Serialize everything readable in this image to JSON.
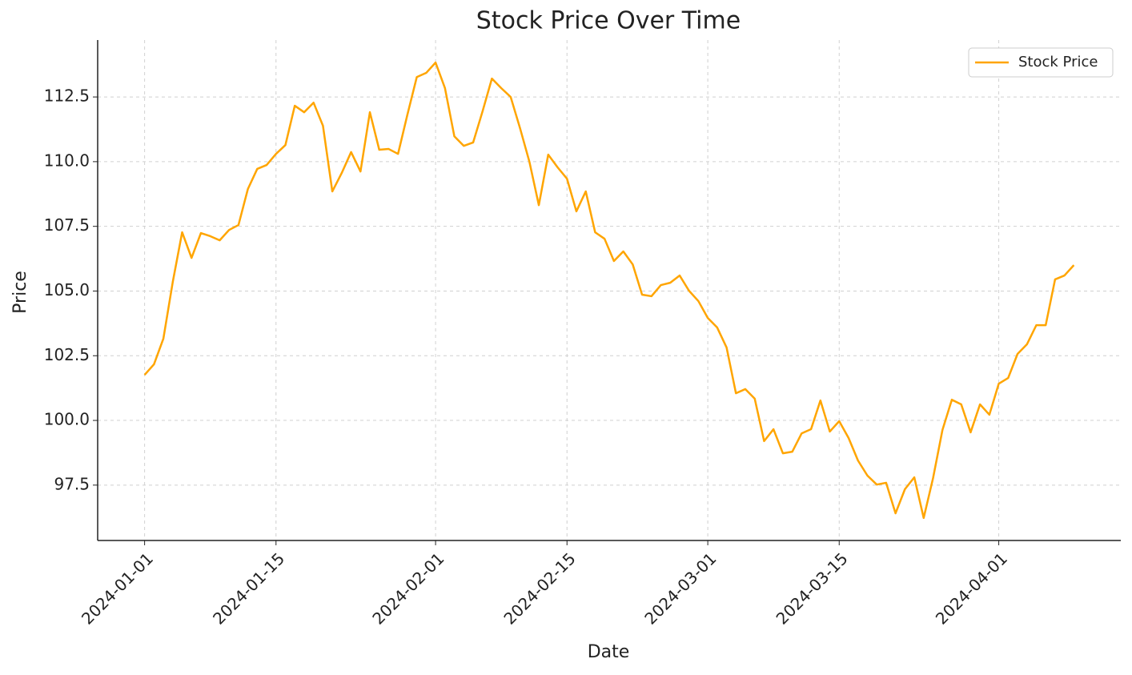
{
  "chart_data": {
    "type": "line",
    "title": "Stock Price Over Time",
    "x_label": "Date",
    "y_label": "Price",
    "x": [
      "2024-01-01",
      "2024-01-02",
      "2024-01-03",
      "2024-01-04",
      "2024-01-05",
      "2024-01-06",
      "2024-01-07",
      "2024-01-08",
      "2024-01-09",
      "2024-01-10",
      "2024-01-11",
      "2024-01-12",
      "2024-01-13",
      "2024-01-14",
      "2024-01-15",
      "2024-01-16",
      "2024-01-17",
      "2024-01-18",
      "2024-01-19",
      "2024-01-20",
      "2024-01-21",
      "2024-01-22",
      "2024-01-23",
      "2024-01-24",
      "2024-01-25",
      "2024-01-26",
      "2024-01-27",
      "2024-01-28",
      "2024-01-29",
      "2024-01-30",
      "2024-01-31",
      "2024-02-01",
      "2024-02-02",
      "2024-02-03",
      "2024-02-04",
      "2024-02-05",
      "2024-02-06",
      "2024-02-07",
      "2024-02-08",
      "2024-02-09",
      "2024-02-10",
      "2024-02-11",
      "2024-02-12",
      "2024-02-13",
      "2024-02-14",
      "2024-02-15",
      "2024-02-16",
      "2024-02-17",
      "2024-02-18",
      "2024-02-19",
      "2024-02-20",
      "2024-02-21",
      "2024-02-22",
      "2024-02-23",
      "2024-02-24",
      "2024-02-25",
      "2024-02-26",
      "2024-02-27",
      "2024-02-28",
      "2024-02-29",
      "2024-03-01",
      "2024-03-02",
      "2024-03-03",
      "2024-03-04",
      "2024-03-05",
      "2024-03-06",
      "2024-03-07",
      "2024-03-08",
      "2024-03-09",
      "2024-03-10",
      "2024-03-11",
      "2024-03-12",
      "2024-03-13",
      "2024-03-14",
      "2024-03-15",
      "2024-03-16",
      "2024-03-17",
      "2024-03-18",
      "2024-03-19",
      "2024-03-20",
      "2024-03-21",
      "2024-03-22",
      "2024-03-23",
      "2024-03-24",
      "2024-03-25",
      "2024-03-26",
      "2024-03-27",
      "2024-03-28",
      "2024-03-29",
      "2024-03-30",
      "2024-03-31",
      "2024-04-01",
      "2024-04-02",
      "2024-04-03",
      "2024-04-04",
      "2024-04-05",
      "2024-04-06",
      "2024-04-07",
      "2024-04-08",
      "2024-04-09"
    ],
    "series": [
      {
        "name": "Stock Price",
        "color": "#FFA500",
        "values": [
          101.76,
          102.17,
          103.16,
          105.35,
          107.27,
          106.28,
          107.24,
          107.12,
          106.96,
          107.36,
          107.55,
          108.94,
          109.72,
          109.87,
          110.3,
          110.64,
          112.16,
          111.91,
          112.28,
          111.39,
          108.85,
          109.56,
          110.37,
          109.62,
          111.91,
          110.46,
          110.49,
          110.3,
          111.82,
          113.27,
          113.43,
          113.83,
          112.84,
          110.98,
          110.61,
          110.74,
          111.94,
          113.21,
          112.84,
          112.5,
          111.29,
          109.99,
          108.32,
          110.27,
          109.78,
          109.34,
          108.08,
          108.85,
          107.27,
          107.02,
          106.16,
          106.53,
          106.03,
          104.86,
          104.8,
          105.23,
          105.32,
          105.6,
          105.01,
          104.61,
          103.96,
          103.59,
          102.82,
          101.05,
          101.21,
          100.84,
          99.2,
          99.66,
          98.73,
          98.79,
          99.5,
          99.66,
          100.77,
          99.57,
          99.97,
          99.32,
          98.45,
          97.87,
          97.52,
          97.59,
          96.41,
          97.34,
          97.8,
          96.23,
          97.77,
          99.63,
          100.8,
          100.62,
          99.54,
          100.62,
          100.22,
          101.42,
          101.64,
          102.57,
          102.94,
          103.68,
          103.68,
          105.45,
          105.6,
          106.0
        ]
      }
    ],
    "xlim": [
      "2023-12-27",
      "2024-04-14"
    ],
    "xticks": [
      "2024-01-01",
      "2024-01-15",
      "2024-02-01",
      "2024-02-15",
      "2024-03-01",
      "2024-03-15",
      "2024-04-01"
    ],
    "ylim": [
      95.36,
      114.7
    ],
    "yticks": [
      97.5,
      {
        "value": 100,
        "label": "100.0"
      },
      102.5,
      {
        "value": 105,
        "label": "105.0"
      },
      107.5,
      {
        "value": 110,
        "label": "110.0"
      },
      112.5
    ],
    "grid": true,
    "legend": "upper right"
  }
}
